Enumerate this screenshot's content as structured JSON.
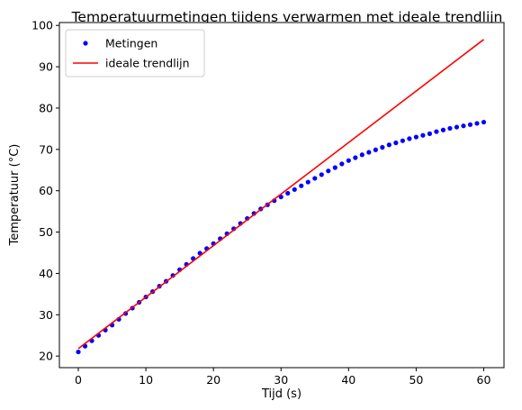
{
  "chart_data": {
    "type": "line",
    "title": "Temperatuurmetingen tijdens verwarmen met ideale trendlijn",
    "xlabel": "Tijd (s)",
    "ylabel": "Temperatuur (°C)",
    "xlim": [
      -2.8,
      63
    ],
    "ylim": [
      17.2,
      100.7
    ],
    "xticks": [
      0,
      10,
      20,
      30,
      40,
      50,
      60
    ],
    "yticks": [
      20,
      30,
      40,
      50,
      60,
      70,
      80,
      90,
      100
    ],
    "grid": false,
    "legend_position": "top-left",
    "series": [
      {
        "name": "Metingen",
        "style": "points",
        "color": "#0000ff",
        "x": [
          0,
          1,
          2,
          3,
          4,
          5,
          6,
          7,
          8,
          9,
          10,
          11,
          12,
          13,
          14,
          15,
          16,
          17,
          18,
          19,
          20,
          21,
          22,
          23,
          24,
          25,
          26,
          27,
          28,
          29,
          30,
          31,
          32,
          33,
          34,
          35,
          36,
          37,
          38,
          39,
          40,
          41,
          42,
          43,
          44,
          45,
          46,
          47,
          48,
          49,
          50,
          51,
          52,
          53,
          54,
          55,
          56,
          57,
          58,
          59,
          60
        ],
        "y": [
          21.0,
          22.4,
          23.7,
          25.0,
          26.3,
          27.5,
          28.9,
          30.3,
          31.6,
          33.0,
          34.3,
          35.6,
          36.9,
          38.1,
          39.5,
          40.9,
          42.2,
          43.6,
          44.9,
          46.0,
          47.2,
          48.4,
          49.6,
          50.8,
          52.1,
          53.3,
          54.5,
          55.6,
          56.6,
          57.6,
          58.5,
          59.4,
          60.3,
          61.2,
          62.1,
          63.0,
          63.9,
          64.8,
          65.6,
          66.5,
          67.3,
          68.0,
          68.7,
          69.3,
          69.9,
          70.5,
          71.1,
          71.6,
          72.1,
          72.6,
          73.0,
          73.4,
          73.8,
          74.3,
          74.7,
          75.1,
          75.4,
          75.7,
          76.0,
          76.3,
          76.6
        ]
      },
      {
        "name": "ideale trendlijn",
        "style": "line",
        "color": "#ff0000",
        "x": [
          0,
          60
        ],
        "y": [
          21.8,
          96.6
        ]
      }
    ]
  }
}
